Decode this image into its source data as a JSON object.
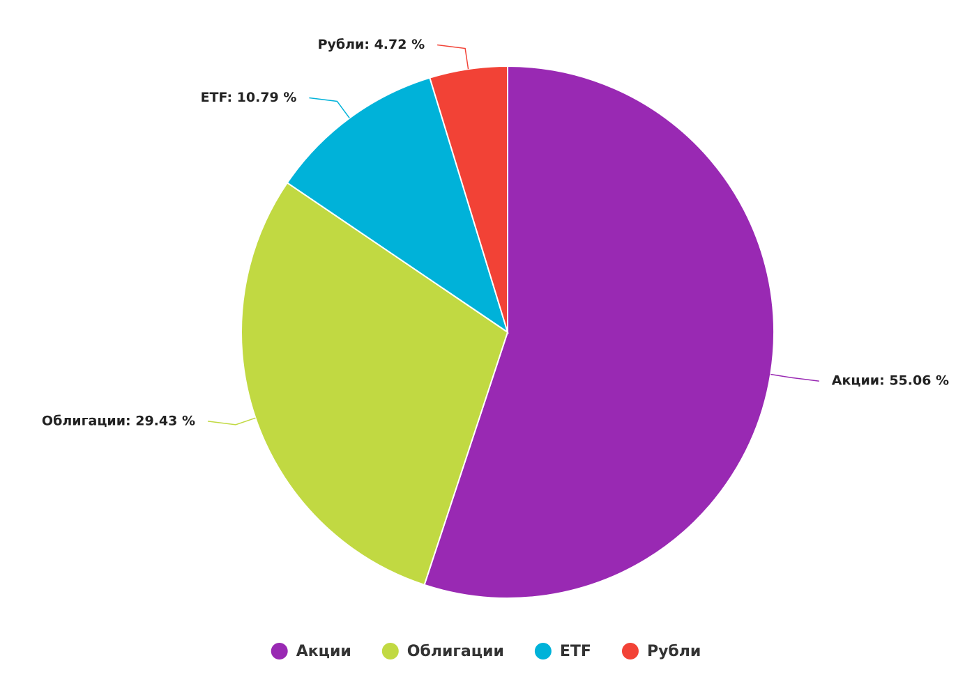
{
  "chart_data": {
    "type": "pie",
    "categories": [
      "Акции",
      "Облигации",
      "ETF",
      "Рубли"
    ],
    "values": [
      55.06,
      29.43,
      10.79,
      4.72
    ],
    "value_labels": [
      "Акции: 55.06 %",
      "Облигации: 29.43 %",
      "ETF: 10.79 %",
      "Рубли: 4.72 %"
    ],
    "colors": [
      "#9929b3",
      "#c1d942",
      "#00b2d9",
      "#f24236"
    ],
    "legend": "bottom"
  }
}
